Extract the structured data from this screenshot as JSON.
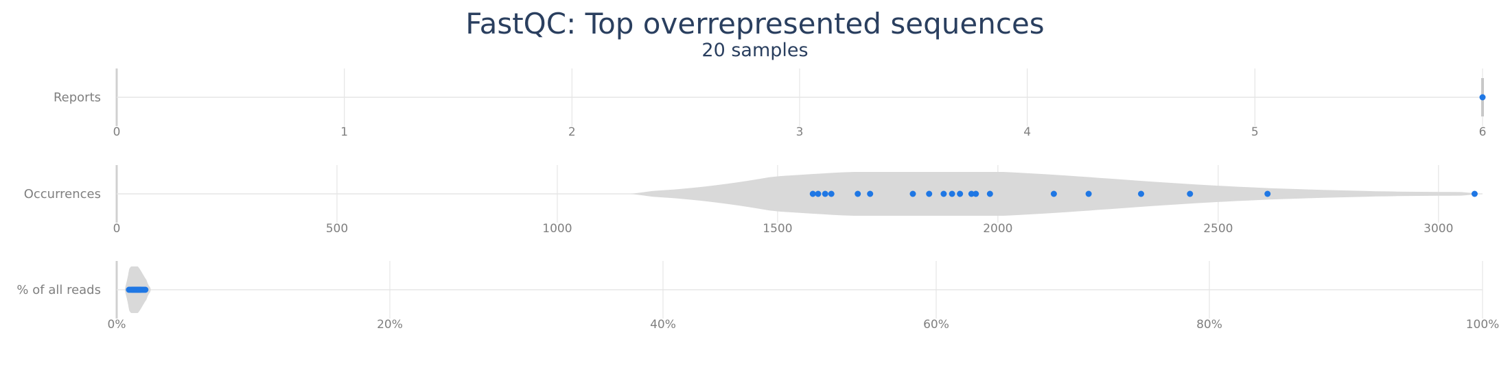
{
  "chart_data": {
    "type": "violin",
    "title": "FastQC: Top overrepresented sequences",
    "subtitle": "20 samples",
    "colors": {
      "point": "#1f77e4",
      "violin": "#d9d9d9",
      "grid": "#e5e5e5",
      "text": "#7f7f7f",
      "title": "#2a3f5f"
    },
    "panels": [
      {
        "label": "Reports",
        "xlim": [
          0,
          6
        ],
        "ticks": [
          {
            "value": 0,
            "label": "0"
          },
          {
            "value": 1,
            "label": "1"
          },
          {
            "value": 2,
            "label": "2"
          },
          {
            "value": 3,
            "label": "3"
          },
          {
            "value": 4,
            "label": "4"
          },
          {
            "value": 5,
            "label": "5"
          },
          {
            "value": 6,
            "label": "6"
          }
        ],
        "points": [
          6
        ],
        "violin": {
          "min": 6,
          "max": 6,
          "peak": 6,
          "spread": 0
        }
      },
      {
        "label": "Occurrences",
        "xlim": [
          0,
          3100
        ],
        "ticks": [
          {
            "value": 0,
            "label": "0"
          },
          {
            "value": 500,
            "label": "500"
          },
          {
            "value": 1000,
            "label": "1000"
          },
          {
            "value": 1500,
            "label": "1500"
          },
          {
            "value": 2000,
            "label": "2000"
          },
          {
            "value": 2500,
            "label": "2500"
          },
          {
            "value": 3000,
            "label": "3000"
          }
        ],
        "points": [
          1580,
          1592,
          1608,
          1622,
          1682,
          1710,
          1807,
          1844,
          1877,
          1896,
          1914,
          1940,
          1950,
          1982,
          2127,
          2206,
          2325,
          2436,
          2612,
          3082
        ],
        "violin": {
          "min": 1167,
          "max": 3100,
          "peak": 1840,
          "spread": 420
        }
      },
      {
        "label": "% of all reads",
        "xlim": [
          0,
          100
        ],
        "ticks": [
          {
            "value": 0,
            "label": "0%"
          },
          {
            "value": 20,
            "label": "20%"
          },
          {
            "value": 40,
            "label": "40%"
          },
          {
            "value": 60,
            "label": "60%"
          },
          {
            "value": 80,
            "label": "80%"
          },
          {
            "value": 100,
            "label": "100%"
          }
        ],
        "points": [
          0.9,
          1.0,
          1.1,
          1.2,
          1.3,
          1.4,
          1.5,
          1.6,
          1.7,
          1.8,
          1.9,
          2.0,
          1.15,
          1.35,
          1.55,
          1.75,
          1.25,
          1.45,
          1.65,
          2.1
        ],
        "violin": {
          "min": 0.6,
          "max": 2.5,
          "peak": 1.3,
          "spread": 0.6
        }
      }
    ]
  }
}
